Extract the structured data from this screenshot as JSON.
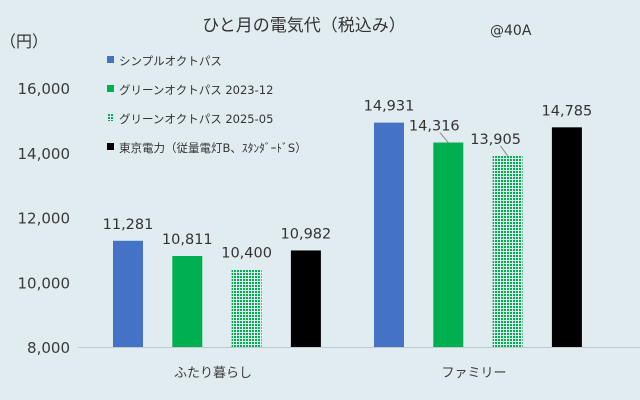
{
  "chart_data": {
    "type": "bar",
    "title": "ひと月の電気代（税込み）",
    "annotation": "@40A",
    "unit_label": "（円）",
    "ylim": [
      8000,
      16000
    ],
    "y_ticks": [
      8000,
      10000,
      12000,
      14000,
      16000
    ],
    "y_tick_labels": [
      "8,000",
      "10,000",
      "12,000",
      "14,000",
      "16,000"
    ],
    "grid": false,
    "legend_position": "top-left",
    "categories": [
      "ふたり暮らし",
      "ファミリー"
    ],
    "series": [
      {
        "name": "シンプルオクトパス",
        "values": [
          11281,
          14931
        ],
        "labels": [
          "11,281",
          "14,931"
        ],
        "color": "#4472c4",
        "pattern": "solid"
      },
      {
        "name": "グリーンオクトパス 2023-12",
        "values": [
          10811,
          14316
        ],
        "labels": [
          "10,811",
          "14,316"
        ],
        "color": "#00b050",
        "pattern": "solid"
      },
      {
        "name": "グリーンオクトパス 2025-05",
        "values": [
          10400,
          13905
        ],
        "labels": [
          "10,400",
          "13,905"
        ],
        "color": "#00b050",
        "pattern": "dotted"
      },
      {
        "name": "東京電力（従量電灯B、ｽﾀﾝﾀﾞｰﾄﾞS）",
        "values": [
          10982,
          14785
        ],
        "labels": [
          "10,982",
          "14,785"
        ],
        "color": "#000000",
        "pattern": "solid"
      }
    ]
  }
}
